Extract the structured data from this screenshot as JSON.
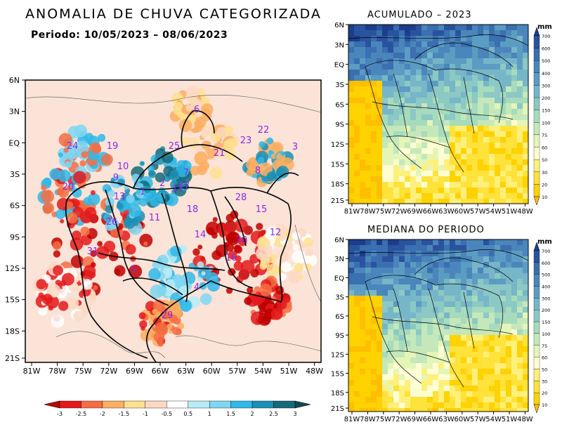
{
  "header": {
    "title": "ANOMALIA DE CHUVA CATEGORIZADA",
    "period": "Periodo: 10/05/2023 – 08/06/2023"
  },
  "maps": {
    "lat_ticks": [
      "6N",
      "3N",
      "EQ",
      "3S",
      "6S",
      "9S",
      "12S",
      "15S",
      "18S",
      "21S"
    ],
    "lon_ticks": [
      "81W",
      "78W",
      "75W",
      "72W",
      "69W",
      "66W",
      "63W",
      "60W",
      "57W",
      "54W",
      "51W",
      "48W"
    ],
    "anomaly": {
      "basin_labels": [
        "24",
        "19",
        "25",
        "6",
        "22",
        "23",
        "21",
        "3",
        "10",
        "8",
        "7",
        "27",
        "2",
        "9",
        "1",
        "17",
        "20",
        "13",
        "18",
        "28",
        "11",
        "15",
        "26",
        "14",
        "12",
        "30",
        "31",
        "16",
        "4",
        "5",
        "29"
      ]
    },
    "accumulated": {
      "title": "ACUMULADO – 2023",
      "unit": "mm"
    },
    "median": {
      "title": "MEDIANA DO PERIODO",
      "unit": "mm"
    }
  },
  "anomaly_scale": {
    "labels": [
      "-3",
      "-2.5",
      "-2",
      "-1.5",
      "-1",
      "-0.5",
      "0.5",
      "1",
      "1.5",
      "2",
      "2.5",
      "3"
    ],
    "colors": [
      "#c00000",
      "#e31a1c",
      "#f46d43",
      "#fdae61",
      "#fee090",
      "#fdd9c4",
      "#ffffff",
      "#b8ecf6",
      "#7fd6f2",
      "#30b8e8",
      "#1c8fb5",
      "#146a7a",
      "#0d4a52"
    ]
  },
  "precip_scale": {
    "labels": [
      "10",
      "20",
      "30",
      "50",
      "60",
      "75",
      "100",
      "150",
      "200",
      "300",
      "400",
      "500",
      "600",
      "700"
    ],
    "colors": [
      "#ffbf00",
      "#ffd200",
      "#ffe23a",
      "#fff07a",
      "#ffffd4",
      "#e4f5b8",
      "#c4e8ba",
      "#a6dbbd",
      "#8cc8c4",
      "#76b6c8",
      "#5c9cc2",
      "#4a86bb",
      "#3a6fb0",
      "#2a539e",
      "#1d3d8a"
    ]
  }
}
